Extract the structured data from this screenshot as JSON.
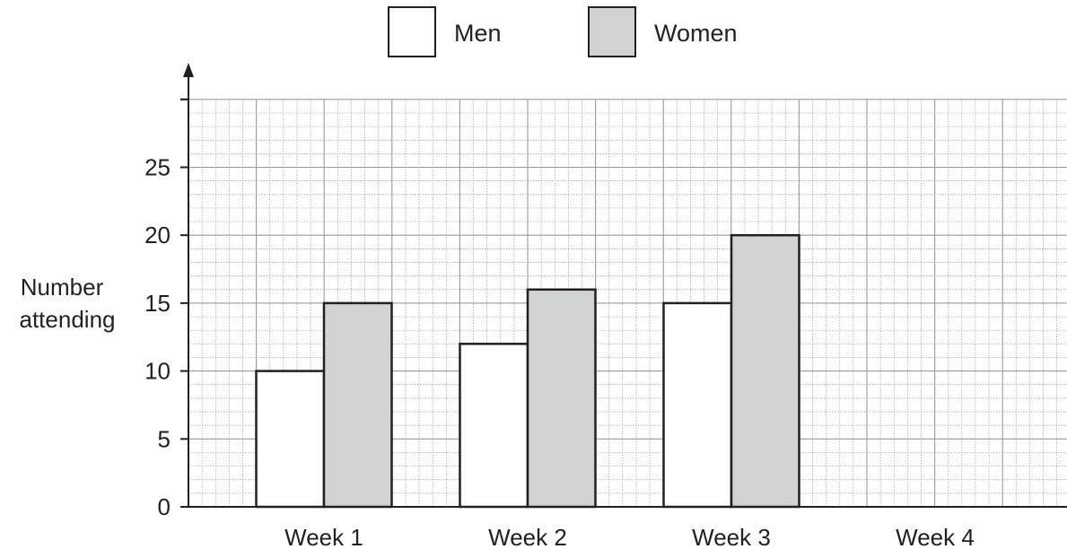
{
  "chart_data": {
    "type": "bar",
    "title": "",
    "xlabel": "",
    "ylabel": [
      "Number",
      "attending"
    ],
    "categories": [
      "Week 1",
      "Week 2",
      "Week 3",
      "Week 4"
    ],
    "series": [
      {
        "name": "Men",
        "color": "#ffffff",
        "values": [
          10,
          12,
          15,
          null
        ]
      },
      {
        "name": "Women",
        "color": "#d1d2d4",
        "values": [
          15,
          16,
          20,
          null
        ]
      }
    ],
    "ylim": [
      0,
      30
    ],
    "yticks": [
      "0",
      "5",
      "10",
      "15",
      "20",
      "25"
    ],
    "grid": true,
    "legend_position": "top-center",
    "colors": {
      "ink": "#231f20",
      "grid": "#9a9a9a"
    }
  }
}
